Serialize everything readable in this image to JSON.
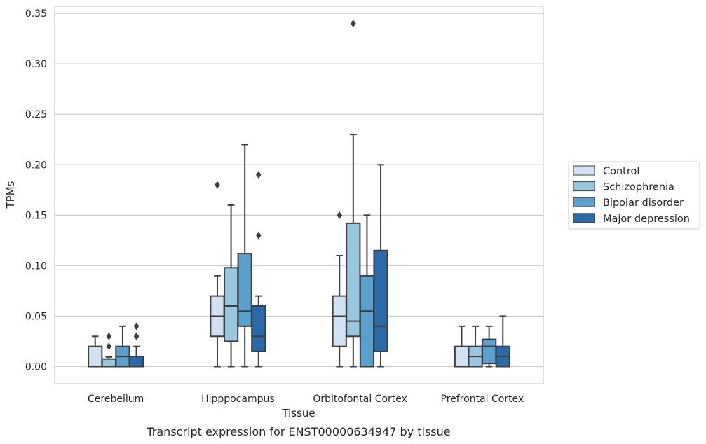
{
  "chart_data": {
    "type": "boxplot",
    "caption": "Transcript expression for ENST00000634947 by tissue",
    "xlabel": "Tissue",
    "ylabel": "TPMs",
    "ylim": [
      -0.017,
      0.357
    ],
    "yticks": [
      0.0,
      0.05,
      0.1,
      0.15,
      0.2,
      0.25,
      0.3,
      0.35
    ],
    "ytick_labels": [
      "0.00",
      "0.05",
      "0.10",
      "0.15",
      "0.20",
      "0.25",
      "0.30",
      "0.35"
    ],
    "grid": "horizontal",
    "legend_position": "right",
    "categories": [
      "Cerebellum",
      "Hipppocampus",
      "Orbitofontal Cortex",
      "Prefrontal Cortex"
    ],
    "series": [
      {
        "name": "Control",
        "color": "#d1e1f1",
        "boxes": [
          {
            "whislo": 0.0,
            "q1": 0.0,
            "med": 0.0,
            "q3": 0.02,
            "whishi": 0.03,
            "fliers": []
          },
          {
            "whislo": 0.0,
            "q1": 0.03,
            "med": 0.05,
            "q3": 0.07,
            "whishi": 0.09,
            "fliers": [
              0.18
            ]
          },
          {
            "whislo": 0.0,
            "q1": 0.02,
            "med": 0.05,
            "q3": 0.07,
            "whishi": 0.11,
            "fliers": [
              0.15
            ]
          },
          {
            "whislo": 0.0,
            "q1": 0.0,
            "med": 0.0,
            "q3": 0.02,
            "whishi": 0.04,
            "fliers": []
          }
        ]
      },
      {
        "name": "Schizophrenia",
        "color": "#9ac7e0",
        "boxes": [
          {
            "whislo": 0.0,
            "q1": 0.0,
            "med": 0.0,
            "q3": 0.0075,
            "whishi": 0.0095,
            "fliers": [
              0.02,
              0.03
            ]
          },
          {
            "whislo": 0.0,
            "q1": 0.025,
            "med": 0.06,
            "q3": 0.098,
            "whishi": 0.16,
            "fliers": []
          },
          {
            "whislo": 0.0,
            "q1": 0.03,
            "med": 0.045,
            "q3": 0.142,
            "whishi": 0.23,
            "fliers": [
              0.34
            ]
          },
          {
            "whislo": 0.0,
            "q1": 0.0,
            "med": 0.01,
            "q3": 0.02,
            "whishi": 0.04,
            "fliers": []
          }
        ]
      },
      {
        "name": "Bipolar disorder",
        "color": "#5b9fcd",
        "boxes": [
          {
            "whislo": 0.0,
            "q1": 0.0,
            "med": 0.01,
            "q3": 0.02,
            "whishi": 0.04,
            "fliers": []
          },
          {
            "whislo": 0.0,
            "q1": 0.04,
            "med": 0.055,
            "q3": 0.112,
            "whishi": 0.22,
            "fliers": []
          },
          {
            "whislo": 0.0,
            "q1": 0.0,
            "med": 0.055,
            "q3": 0.09,
            "whishi": 0.15,
            "fliers": []
          },
          {
            "whislo": 0.0,
            "q1": 0.003,
            "med": 0.02,
            "q3": 0.027,
            "whishi": 0.04,
            "fliers": []
          }
        ]
      },
      {
        "name": "Major depression",
        "color": "#2b6aa8",
        "boxes": [
          {
            "whislo": 0.0,
            "q1": 0.0,
            "med": 0.0,
            "q3": 0.01,
            "whishi": 0.02,
            "fliers": [
              0.03,
              0.04
            ]
          },
          {
            "whislo": 0.0,
            "q1": 0.015,
            "med": 0.03,
            "q3": 0.06,
            "whishi": 0.07,
            "fliers": [
              0.13,
              0.19
            ]
          },
          {
            "whislo": 0.0,
            "q1": 0.015,
            "med": 0.04,
            "q3": 0.115,
            "whishi": 0.2,
            "fliers": []
          },
          {
            "whislo": 0.0,
            "q1": 0.0,
            "med": 0.01,
            "q3": 0.02,
            "whishi": 0.05,
            "fliers": []
          }
        ]
      }
    ]
  }
}
